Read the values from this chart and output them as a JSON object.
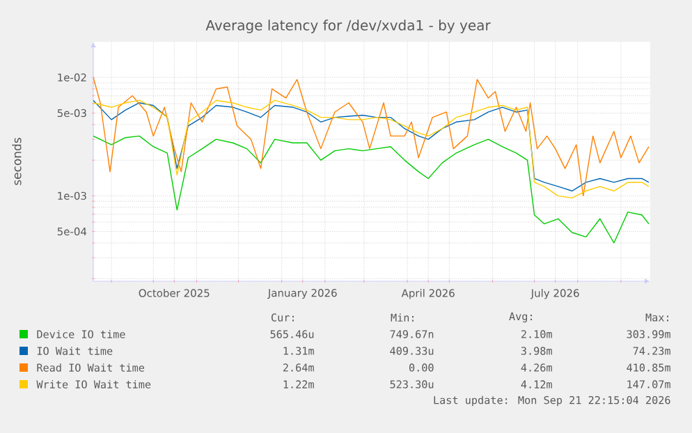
{
  "chart_data": {
    "type": "line",
    "title": "Average latency for /dev/xvda1 - by year",
    "ylabel": "seconds",
    "log": true,
    "grid": true,
    "legend": "bottom",
    "xlim": [
      "2025-08-19",
      "2026-09-22"
    ],
    "ylim": [
      0.00019,
      0.02
    ],
    "xticks": [
      {
        "value": "2025-09-01",
        "label": null
      },
      {
        "value": "2025-10-01",
        "label": null
      },
      {
        "value": "2025-10-16",
        "label": "October 2025"
      },
      {
        "value": "2025-11-01",
        "label": null
      },
      {
        "value": "2025-12-01",
        "label": null
      },
      {
        "value": "2026-01-01",
        "label": null
      },
      {
        "value": "2026-01-16",
        "label": "January 2026"
      },
      {
        "value": "2026-02-01",
        "label": null
      },
      {
        "value": "2026-03-01",
        "label": null
      },
      {
        "value": "2026-04-01",
        "label": null
      },
      {
        "value": "2026-04-16",
        "label": "April 2026"
      },
      {
        "value": "2026-05-01",
        "label": null
      },
      {
        "value": "2026-06-01",
        "label": null
      },
      {
        "value": "2026-07-01",
        "label": null
      },
      {
        "value": "2026-07-16",
        "label": "July 2026"
      },
      {
        "value": "2026-08-01",
        "label": null
      },
      {
        "value": "2026-09-01",
        "label": null
      }
    ],
    "yticks": [
      {
        "value": 0.0002,
        "label": null
      },
      {
        "value": 0.0003,
        "label": null
      },
      {
        "value": 0.0004,
        "label": null
      },
      {
        "value": 0.0005,
        "label": "5e-04"
      },
      {
        "value": 0.0006,
        "label": null
      },
      {
        "value": 0.0007,
        "label": null
      },
      {
        "value": 0.0008,
        "label": null
      },
      {
        "value": 0.0009,
        "label": null
      },
      {
        "value": 0.001,
        "label": "1e-03"
      },
      {
        "value": 0.002,
        "label": null
      },
      {
        "value": 0.003,
        "label": null
      },
      {
        "value": 0.004,
        "label": null
      },
      {
        "value": 0.005,
        "label": "5e-03"
      },
      {
        "value": 0.006,
        "label": null
      },
      {
        "value": 0.007,
        "label": null
      },
      {
        "value": 0.008,
        "label": null
      },
      {
        "value": 0.009,
        "label": null
      },
      {
        "value": 0.01,
        "label": "1e-02"
      }
    ],
    "x": [
      "2025-08-19",
      "2025-09-01",
      "2025-09-11",
      "2025-09-21",
      "2025-10-01",
      "2025-10-11",
      "2025-10-18",
      "2025-10-26",
      "2025-11-05",
      "2025-11-15",
      "2025-11-27",
      "2025-12-07",
      "2025-12-17",
      "2025-12-27",
      "2026-01-09",
      "2026-01-19",
      "2026-01-29",
      "2026-02-08",
      "2026-02-18",
      "2026-02-28",
      "2026-03-10",
      "2026-03-20",
      "2026-03-30",
      "2026-04-09",
      "2026-04-16",
      "2026-04-26",
      "2026-05-06",
      "2026-05-19",
      "2026-05-29",
      "2026-06-08",
      "2026-06-18",
      "2026-06-26",
      "2026-07-01",
      "2026-07-08",
      "2026-07-18",
      "2026-07-28",
      "2026-08-07",
      "2026-08-17",
      "2026-08-27",
      "2026-09-06",
      "2026-09-16",
      "2026-09-21"
    ],
    "series": [
      {
        "name": "Device IO time",
        "color": "#00cc00",
        "values": [
          0.0032,
          0.0027,
          0.0031,
          0.0032,
          0.0026,
          0.0023,
          0.00076,
          0.0021,
          0.0025,
          0.003,
          0.0028,
          0.0025,
          0.0019,
          0.003,
          0.0028,
          0.0028,
          0.002,
          0.0024,
          0.0025,
          0.0024,
          0.0025,
          0.0026,
          0.002,
          0.0016,
          0.0014,
          0.0019,
          0.0023,
          0.0027,
          0.003,
          0.0026,
          0.0023,
          0.002,
          0.00069,
          0.00058,
          0.00064,
          0.00049,
          0.00045,
          0.00064,
          0.0004,
          0.00073,
          0.00069,
          0.00058
        ]
      },
      {
        "name": "IO Wait time",
        "color": "#0066b3",
        "values": [
          0.0064,
          0.0044,
          0.0053,
          0.0061,
          0.0058,
          0.0046,
          0.0017,
          0.0039,
          0.0046,
          0.0058,
          0.0056,
          0.0051,
          0.0046,
          0.0058,
          0.0056,
          0.0051,
          0.0042,
          0.0046,
          0.0047,
          0.0048,
          0.0046,
          0.0046,
          0.0037,
          0.0032,
          0.003,
          0.0037,
          0.0042,
          0.0044,
          0.0051,
          0.0056,
          0.0051,
          0.0053,
          0.0014,
          0.0013,
          0.0012,
          0.0011,
          0.0013,
          0.0014,
          0.0013,
          0.0014,
          0.0014,
          0.0013
        ]
      },
      {
        "name": "Read IO Wait time",
        "color": "#ff8000",
        "x": [
          "2025-08-19",
          "2025-08-24",
          "2025-08-31",
          "2025-09-06",
          "2025-09-16",
          "2025-09-26",
          "2025-10-01",
          "2025-10-09",
          "2025-10-16",
          "2025-10-21",
          "2025-10-28",
          "2025-11-05",
          "2025-11-15",
          "2025-11-23",
          "2025-11-30",
          "2025-12-10",
          "2025-12-17",
          "2025-12-25",
          "2026-01-04",
          "2026-01-12",
          "2026-01-19",
          "2026-01-29",
          "2026-02-08",
          "2026-02-18",
          "2026-02-28",
          "2026-03-05",
          "2026-03-15",
          "2026-03-20",
          "2026-03-30",
          "2026-04-04",
          "2026-04-09",
          "2026-04-19",
          "2026-04-29",
          "2026-05-04",
          "2026-05-14",
          "2026-05-21",
          "2026-05-29",
          "2026-06-03",
          "2026-06-10",
          "2026-06-18",
          "2026-06-25",
          "2026-06-28",
          "2026-07-03",
          "2026-07-10",
          "2026-07-16",
          "2026-07-23",
          "2026-07-31",
          "2026-08-05",
          "2026-08-12",
          "2026-08-17",
          "2026-08-27",
          "2026-09-01",
          "2026-09-08",
          "2026-09-14",
          "2026-09-21"
        ],
        "values": [
          0.01,
          0.0061,
          0.0016,
          0.0056,
          0.007,
          0.0051,
          0.0032,
          0.0056,
          0.0025,
          0.0016,
          0.0061,
          0.0042,
          0.008,
          0.0083,
          0.0039,
          0.003,
          0.0017,
          0.008,
          0.0067,
          0.0096,
          0.0051,
          0.0025,
          0.0051,
          0.0061,
          0.0042,
          0.0025,
          0.0061,
          0.0032,
          0.0032,
          0.0042,
          0.0021,
          0.0046,
          0.0051,
          0.0025,
          0.0032,
          0.0096,
          0.0067,
          0.0076,
          0.0035,
          0.0056,
          0.0035,
          0.0061,
          0.0025,
          0.0032,
          0.0025,
          0.0017,
          0.0027,
          0.001,
          0.0032,
          0.0019,
          0.0035,
          0.0021,
          0.0032,
          0.0019,
          0.0026
        ]
      },
      {
        "name": "Write IO Wait time",
        "color": "#ffcc00",
        "values": [
          0.0061,
          0.0056,
          0.0061,
          0.0064,
          0.0056,
          0.0046,
          0.0015,
          0.0042,
          0.0051,
          0.0064,
          0.0061,
          0.0056,
          0.0053,
          0.0064,
          0.0058,
          0.0053,
          0.0046,
          0.0046,
          0.0044,
          0.0044,
          0.0046,
          0.0044,
          0.0039,
          0.0034,
          0.0032,
          0.0037,
          0.0046,
          0.0051,
          0.0056,
          0.0058,
          0.0053,
          0.0056,
          0.0013,
          0.0012,
          0.001,
          0.00096,
          0.0011,
          0.0012,
          0.0011,
          0.0013,
          0.0013,
          0.0012
        ]
      }
    ],
    "annotations": [
      "Cur:",
      "Min:",
      "Avg:",
      "Max:",
      "565.46u",
      "749.67n",
      "2.10m",
      "303.99m",
      "1.31m",
      "409.33u",
      "3.98m",
      "74.23m",
      "2.64m",
      "0.00",
      "4.26m",
      "410.85m",
      "1.22m",
      "523.30u",
      "4.12m",
      "147.07m",
      "Last update: Mon Sep 21 22:15:04 2026"
    ]
  }
}
